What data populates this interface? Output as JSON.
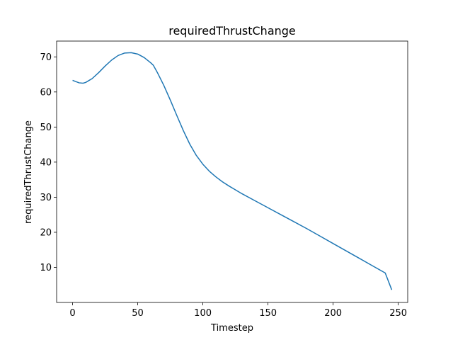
{
  "chart_data": {
    "type": "line",
    "title": "requiredThrustChange",
    "xlabel": "Timestep",
    "ylabel": "requiredThrustChange",
    "xlim": [
      -12.25,
      257.25
    ],
    "ylim": [
      0.0,
      74.5
    ],
    "xticks": [
      0,
      50,
      100,
      150,
      200,
      250
    ],
    "yticks": [
      10,
      20,
      30,
      40,
      50,
      60,
      70
    ],
    "grid": false,
    "series": [
      {
        "color": "#1f77b4",
        "x": [
          0,
          5,
          8,
          10,
          15,
          20,
          25,
          30,
          35,
          40,
          45,
          50,
          55,
          60,
          62,
          65,
          70,
          75,
          80,
          85,
          90,
          95,
          100,
          105,
          110,
          115,
          120,
          125,
          130,
          140,
          150,
          160,
          170,
          180,
          190,
          200,
          210,
          220,
          230,
          240,
          245
        ],
        "y": [
          63.3,
          62.6,
          62.5,
          62.7,
          63.8,
          65.5,
          67.4,
          69.1,
          70.4,
          71.1,
          71.2,
          70.8,
          69.8,
          68.3,
          67.6,
          65.6,
          61.9,
          57.7,
          53.3,
          49.0,
          45.1,
          41.9,
          39.4,
          37.4,
          35.8,
          34.4,
          33.2,
          32.1,
          31.0,
          29.0,
          27.0,
          25.0,
          23.0,
          21.0,
          18.9,
          16.8,
          14.7,
          12.6,
          10.5,
          8.4,
          3.6
        ]
      }
    ]
  }
}
